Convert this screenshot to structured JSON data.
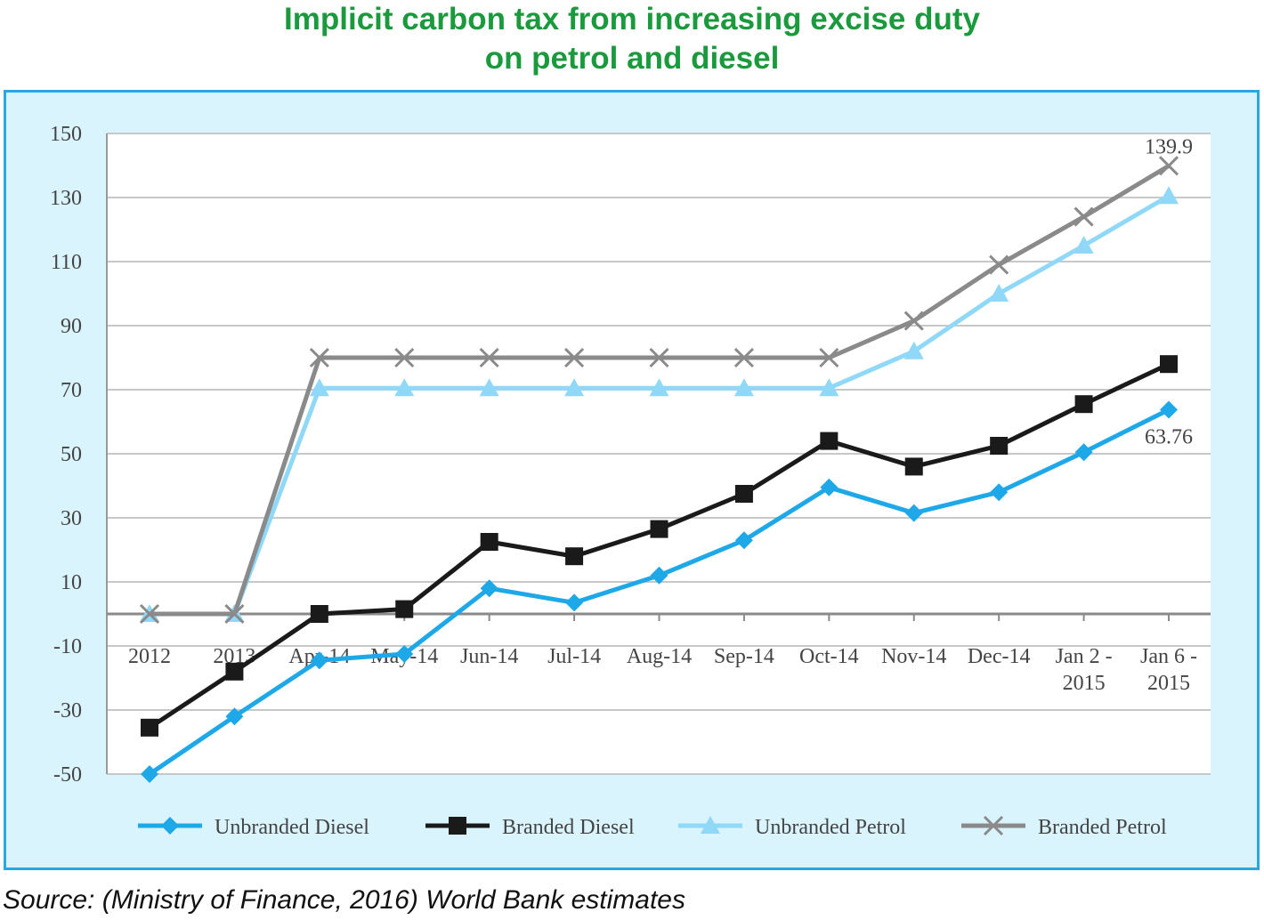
{
  "title_line1": "Implicit carbon tax from increasing excise duty",
  "title_line2": "on petrol and diesel",
  "source": "Source: (Ministry of Finance, 2016) World Bank estimates",
  "colors": {
    "title": "#1a9a3c",
    "frame_border": "#2aa6e0",
    "frame_fill": "#d9f4fd",
    "unbranded_diesel": "#1fa8e8",
    "branded_diesel": "#1a1a1a",
    "unbranded_petrol": "#8fd8f8",
    "branded_petrol": "#8a8a8a"
  },
  "chart_data": {
    "type": "line",
    "title": "Implicit carbon tax from increasing excise duty on petrol and diesel",
    "xlabel": "",
    "ylabel": "",
    "ylim": [
      -50,
      150
    ],
    "yticks": [
      150,
      130,
      110,
      90,
      70,
      50,
      30,
      10,
      -10,
      -30,
      -50
    ],
    "grid": true,
    "legend_position": "bottom",
    "categories": [
      [
        "2012"
      ],
      [
        "2013"
      ],
      [
        "Apr-14"
      ],
      [
        "May-14"
      ],
      [
        "Jun-14"
      ],
      [
        "Jul-14"
      ],
      [
        "Aug-14"
      ],
      [
        "Sep-14"
      ],
      [
        "Oct-14"
      ],
      [
        "Nov-14"
      ],
      [
        "Dec-14"
      ],
      [
        "Jan 2 -",
        "2015"
      ],
      [
        "Jan 6 -",
        "2015"
      ]
    ],
    "series": [
      {
        "name": "Unbranded Diesel",
        "marker": "diamond",
        "values": [
          -50,
          -32,
          -14.5,
          -12.5,
          8,
          3.5,
          12,
          23,
          39.5,
          31.5,
          38,
          50.5,
          63.76
        ]
      },
      {
        "name": "Branded Diesel",
        "marker": "square",
        "values": [
          -35.5,
          -18,
          0,
          1.5,
          22.5,
          18,
          26.5,
          37.5,
          54,
          46,
          52.5,
          65.5,
          78
        ]
      },
      {
        "name": "Unbranded Petrol",
        "marker": "triangle",
        "values": [
          0,
          0,
          70.5,
          70.5,
          70.5,
          70.5,
          70.5,
          70.5,
          70.5,
          82,
          100,
          115,
          130.5
        ]
      },
      {
        "name": "Branded Petrol",
        "marker": "x",
        "values": [
          0,
          0,
          80,
          80,
          80,
          80,
          80,
          80,
          80,
          91.5,
          109,
          124,
          139.9
        ]
      }
    ],
    "annotations": [
      {
        "text": "139.9",
        "series": "Branded Petrol",
        "category_index": 12
      },
      {
        "text": "63.76",
        "series": "Unbranded Diesel",
        "category_index": 12
      }
    ]
  }
}
